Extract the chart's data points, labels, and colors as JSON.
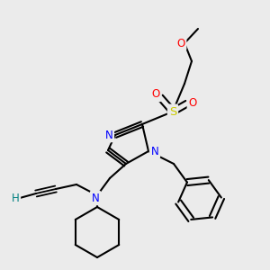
{
  "background_color": "#ebebeb",
  "atom_colors": {
    "C": "#000000",
    "N": "#0000ff",
    "O": "#ff0000",
    "S": "#cccc00",
    "H": "#008080"
  },
  "bond_color": "#000000",
  "lw": 1.5,
  "font_size_atom": 8.5
}
